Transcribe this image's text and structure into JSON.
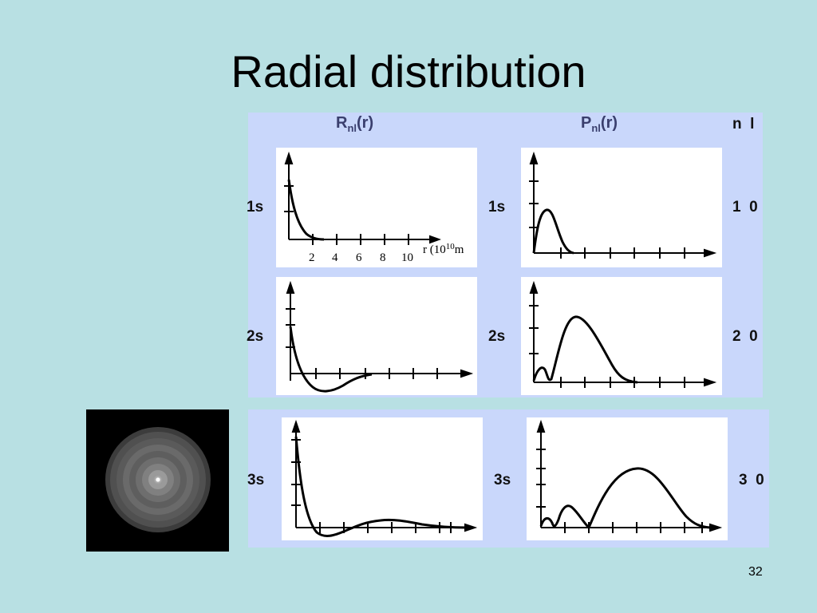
{
  "slide": {
    "title": "Radial distribution",
    "number": "32"
  },
  "headers": {
    "radial_main": "R",
    "radial_sub": "nl",
    "radial_arg": "(r)",
    "prob_main": "P",
    "prob_sub": "nl",
    "prob_arg": "(r)",
    "quantum_numbers": "n  l"
  },
  "rows": [
    {
      "left_label": "1s",
      "right_label": "1s",
      "nl": "1  0"
    },
    {
      "left_label": "2s",
      "right_label": "2s",
      "nl": "2  0"
    },
    {
      "left_label": "3s",
      "right_label": "3s",
      "nl": "3  0"
    }
  ],
  "axis": {
    "ticks": [
      "2",
      "4",
      "6",
      "8",
      "10"
    ],
    "r_label": "r (10",
    "r_exp": "10",
    "r_unit": "m"
  },
  "colors": {
    "background": "#b8e0e3",
    "panel": "#c9d7fb",
    "plot_bg": "#ffffff",
    "curve": "#000000"
  }
}
